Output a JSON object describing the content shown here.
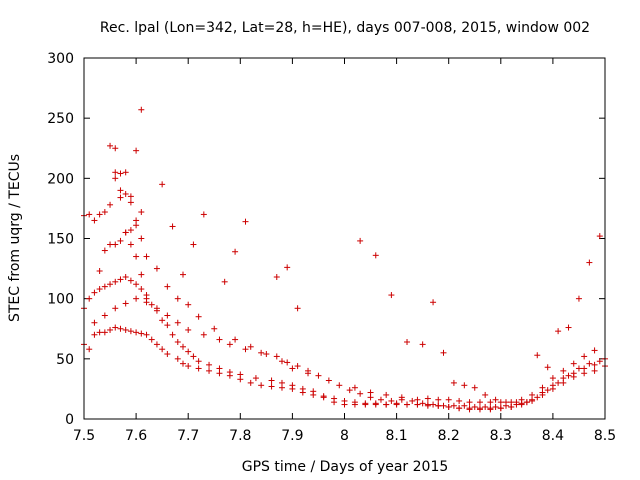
{
  "chart_data": {
    "type": "scatter",
    "title": "Rec. lpal (Lon=342, Lat=28, h=HE), days 007-008, 2015, window 002",
    "xlabel": "GPS time / Days of year 2015",
    "ylabel": "STEC from uqrg / TECUs",
    "xlim": [
      7.5,
      8.5
    ],
    "ylim": [
      0,
      300
    ],
    "xticks": [
      "7.5",
      "7.6",
      "7.7",
      "7.8",
      "7.9",
      "8",
      "8.1",
      "8.2",
      "8.3",
      "8.4",
      "8.5"
    ],
    "yticks": [
      "0",
      "50",
      "100",
      "150",
      "200",
      "250",
      "300"
    ],
    "xtick_values": [
      7.5,
      7.6,
      7.7,
      7.8,
      7.9,
      8.0,
      8.1,
      8.2,
      8.3,
      8.4,
      8.5
    ],
    "ytick_values": [
      0,
      50,
      100,
      150,
      200,
      250,
      300
    ],
    "grid": false,
    "marker": "plus",
    "color": "#cc0000",
    "series": [
      {
        "x": [
          7.5,
          7.51,
          7.52,
          7.53,
          7.54,
          7.55,
          7.56,
          7.57,
          7.58,
          7.59,
          7.6,
          7.61,
          7.62,
          7.63,
          7.64,
          7.65,
          7.66,
          7.68,
          7.69,
          7.7,
          7.72,
          7.74,
          7.76,
          7.78,
          7.8,
          7.82,
          7.84,
          7.86,
          7.88,
          7.9,
          7.92,
          7.94,
          7.96,
          7.98,
          8.0,
          8.02,
          8.04,
          8.06,
          8.08,
          8.1,
          8.12,
          8.14,
          8.16,
          8.18,
          8.2,
          8.22,
          8.24,
          8.26,
          8.28,
          8.3,
          8.32,
          8.34,
          8.36,
          8.38,
          8.4,
          8.42,
          8.44,
          8.46,
          8.48,
          8.5,
          7.5,
          7.51,
          7.52,
          7.53,
          7.54,
          7.55,
          7.56,
          7.57,
          7.58,
          7.59,
          7.6,
          7.61,
          7.62,
          7.63,
          7.64,
          7.65,
          7.66,
          7.67,
          7.68,
          7.69,
          7.7,
          7.71,
          7.72,
          7.74,
          7.76,
          7.78,
          7.8,
          7.83,
          7.86,
          7.88,
          7.9,
          7.92,
          7.94,
          7.96,
          7.98,
          8.0,
          8.02,
          8.04,
          8.06,
          8.08,
          8.1,
          8.12,
          8.14,
          8.16,
          8.18,
          8.2,
          8.22,
          8.24,
          8.26,
          8.28,
          8.3,
          8.32,
          8.34,
          8.36,
          8.38,
          8.4,
          8.42,
          8.44,
          8.46,
          8.48,
          8.5,
          7.52,
          7.54,
          7.56,
          7.58,
          7.6,
          7.62,
          7.64,
          7.66,
          7.68,
          7.7,
          7.73,
          7.76,
          7.78,
          7.81,
          7.84,
          7.87,
          7.89,
          7.91,
          7.93,
          7.95,
          7.97,
          7.99,
          8.01,
          8.03,
          8.05,
          8.07,
          8.09,
          8.11,
          8.13,
          8.15,
          8.17,
          8.19,
          8.21,
          8.23,
          8.25,
          8.27,
          8.29,
          8.31,
          8.33,
          8.35,
          8.37,
          8.39,
          8.41,
          8.43,
          8.45,
          8.47,
          8.49,
          7.5,
          7.51,
          7.52,
          7.53,
          7.54,
          7.55,
          7.56,
          7.57,
          7.58,
          7.59,
          7.6,
          7.61,
          7.62,
          7.64,
          7.66,
          7.68,
          7.7,
          7.72,
          7.75,
          7.79,
          7.82,
          7.85,
          7.88,
          7.9,
          7.93,
          8.02,
          8.05,
          8.08,
          8.11,
          8.14,
          8.16,
          8.18,
          8.2,
          8.22,
          8.24,
          8.26,
          8.28,
          8.3,
          8.32,
          8.34,
          8.36,
          8.38,
          8.4,
          8.42,
          8.44,
          8.46,
          8.48,
          7.55,
          7.56,
          7.57,
          7.58,
          7.59,
          7.6,
          7.61,
          7.56,
          7.57,
          7.58,
          7.59,
          7.6,
          7.61,
          7.62,
          7.53,
          7.54,
          7.55,
          7.56,
          7.57,
          7.58,
          7.59,
          7.6,
          7.61,
          7.65,
          7.67,
          7.69,
          7.71,
          7.73,
          7.77,
          7.79,
          7.81,
          7.87,
          7.89,
          7.91,
          8.03,
          8.06,
          8.09,
          8.12,
          8.15,
          8.17,
          8.19,
          8.21,
          8.23,
          8.25,
          8.27,
          8.29,
          8.31,
          8.33,
          8.35,
          8.37,
          8.39,
          8.41,
          8.43,
          8.45,
          8.47,
          8.49
        ],
        "y": [
          62,
          58,
          70,
          72,
          72,
          74,
          76,
          75,
          74,
          73,
          72,
          71,
          70,
          66,
          62,
          58,
          54,
          50,
          46,
          44,
          42,
          40,
          38,
          36,
          33,
          30,
          28,
          27,
          26,
          25,
          22,
          20,
          18,
          14,
          12,
          12,
          12,
          12,
          12,
          12,
          12,
          12,
          11,
          11,
          10,
          9,
          8,
          8,
          9,
          9,
          10,
          12,
          15,
          20,
          25,
          30,
          35,
          38,
          40,
          44,
          92,
          100,
          105,
          108,
          110,
          112,
          114,
          116,
          118,
          115,
          112,
          108,
          103,
          95,
          90,
          82,
          78,
          70,
          64,
          60,
          56,
          52,
          48,
          45,
          42,
          39,
          37,
          34,
          32,
          30,
          28,
          25,
          23,
          19,
          17,
          15,
          14,
          13,
          13,
          12,
          13,
          12,
          12,
          12,
          11,
          10,
          9,
          9,
          9,
          8,
          9,
          10,
          13,
          16,
          22,
          28,
          34,
          38,
          42,
          45,
          50,
          80,
          86,
          92,
          96,
          100,
          97,
          92,
          86,
          80,
          74,
          70,
          66,
          62,
          58,
          55,
          52,
          47,
          44,
          40,
          36,
          32,
          28,
          24,
          21,
          18,
          16,
          15,
          16,
          15,
          13,
          12,
          11,
          11,
          11,
          10,
          10,
          10,
          11,
          12,
          14,
          18,
          24,
          30,
          36,
          42,
          46,
          48,
          169,
          170,
          165,
          170,
          172,
          178,
          205,
          190,
          187,
          180,
          165,
          150,
          135,
          125,
          110,
          100,
          95,
          85,
          75,
          66,
          60,
          54,
          48,
          42,
          38,
          26,
          22,
          20,
          18,
          16,
          17,
          16,
          16,
          15,
          14,
          14,
          14,
          14,
          14,
          16,
          20,
          26,
          34,
          40,
          46,
          52,
          57,
          227,
          225,
          204,
          205,
          185,
          223,
          257,
          200,
          184,
          155,
          145,
          135,
          120,
          100,
          123,
          140,
          145,
          145,
          148,
          155,
          157,
          161,
          172,
          195,
          160,
          120,
          145,
          170,
          114,
          139,
          164,
          118,
          126,
          92,
          148,
          136,
          103,
          64,
          62,
          97,
          55,
          30,
          28,
          26,
          20,
          16,
          14,
          14,
          14,
          53,
          43,
          73,
          76,
          100,
          130,
          152
        ]
      }
    ]
  }
}
